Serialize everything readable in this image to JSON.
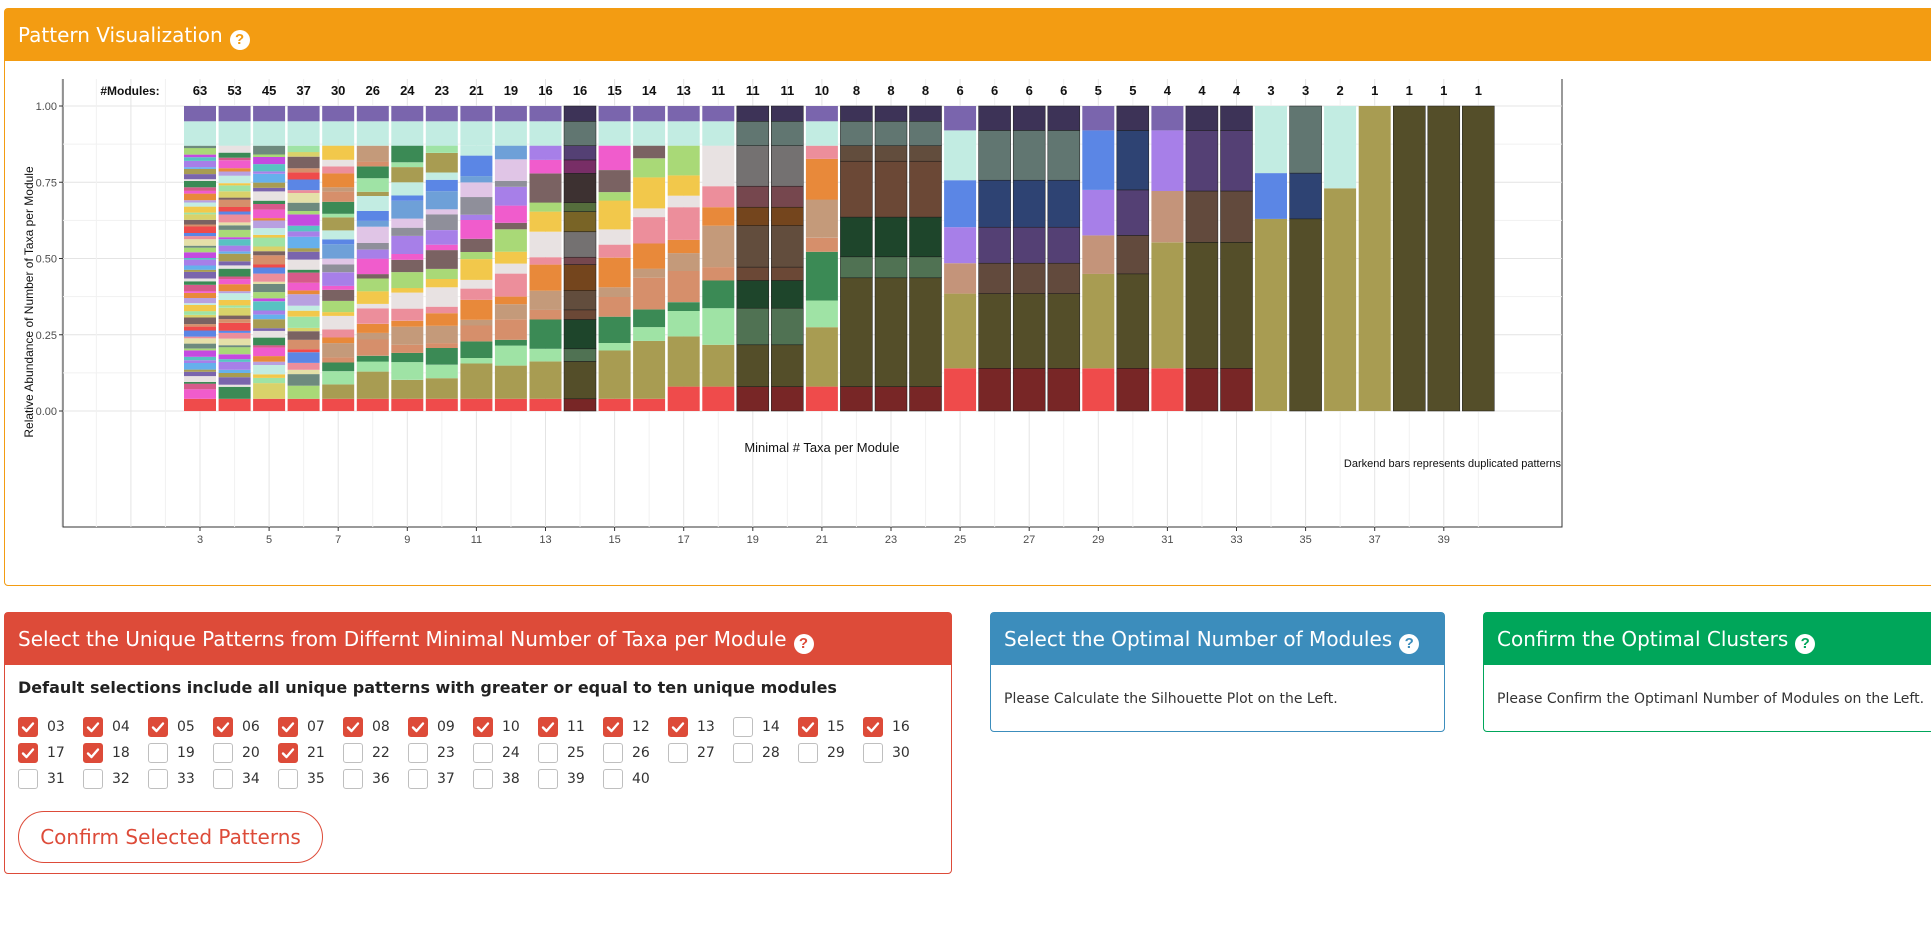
{
  "viz": {
    "title": "Pattern Visualization",
    "help_icon": "question-circle-icon",
    "footnote": "Darkend bars represents duplicated patterns"
  },
  "chart_data": {
    "type": "bar",
    "stacked": true,
    "x_name": "Minimal # Taxa per Module",
    "y_name": "Relative Abundance of Number of Taxa per Module",
    "ylim": [
      0,
      1
    ],
    "yticks": [
      "0.00",
      "0.25",
      "0.50",
      "0.75",
      "1.00"
    ],
    "xticks": [
      3,
      5,
      7,
      9,
      11,
      13,
      15,
      17,
      19,
      21,
      23,
      25,
      27,
      29,
      31,
      33,
      35,
      37,
      39
    ],
    "modules_header": "#Modules:",
    "categories": [
      3,
      4,
      5,
      6,
      7,
      8,
      9,
      10,
      11,
      12,
      13,
      14,
      15,
      16,
      17,
      18,
      19,
      20,
      21,
      22,
      23,
      24,
      25,
      26,
      27,
      28,
      29,
      30,
      31,
      32,
      33,
      34,
      35,
      36,
      37,
      38,
      39,
      40
    ],
    "modules": [
      63,
      53,
      45,
      37,
      30,
      26,
      24,
      23,
      21,
      19,
      16,
      16,
      15,
      14,
      13,
      11,
      11,
      11,
      10,
      8,
      8,
      8,
      6,
      6,
      6,
      6,
      5,
      5,
      4,
      4,
      4,
      3,
      3,
      2,
      1,
      1,
      1,
      1
    ],
    "duplicated": [
      14,
      19,
      20,
      22,
      23,
      24,
      26,
      27,
      28,
      30,
      32,
      33,
      35,
      38,
      39,
      40
    ],
    "grid": true,
    "legend": "none"
  },
  "patterns": {
    "title": "Select the Unique Patterns from Differnt Minimal Number of Taxa per Module",
    "help_icon": "question-circle-icon",
    "description": "Default selections include all unique patterns with greater or equal to ten unique modules",
    "options": [
      {
        "label": "03",
        "checked": true
      },
      {
        "label": "04",
        "checked": true
      },
      {
        "label": "05",
        "checked": true
      },
      {
        "label": "06",
        "checked": true
      },
      {
        "label": "07",
        "checked": true
      },
      {
        "label": "08",
        "checked": true
      },
      {
        "label": "09",
        "checked": true
      },
      {
        "label": "10",
        "checked": true
      },
      {
        "label": "11",
        "checked": true
      },
      {
        "label": "12",
        "checked": true
      },
      {
        "label": "13",
        "checked": true
      },
      {
        "label": "14",
        "checked": false
      },
      {
        "label": "15",
        "checked": true
      },
      {
        "label": "16",
        "checked": true
      },
      {
        "label": "17",
        "checked": true
      },
      {
        "label": "18",
        "checked": true
      },
      {
        "label": "19",
        "checked": false
      },
      {
        "label": "20",
        "checked": false
      },
      {
        "label": "21",
        "checked": true
      },
      {
        "label": "22",
        "checked": false
      },
      {
        "label": "23",
        "checked": false
      },
      {
        "label": "24",
        "checked": false
      },
      {
        "label": "25",
        "checked": false
      },
      {
        "label": "26",
        "checked": false
      },
      {
        "label": "27",
        "checked": false
      },
      {
        "label": "28",
        "checked": false
      },
      {
        "label": "29",
        "checked": false
      },
      {
        "label": "30",
        "checked": false
      },
      {
        "label": "31",
        "checked": false
      },
      {
        "label": "32",
        "checked": false
      },
      {
        "label": "33",
        "checked": false
      },
      {
        "label": "34",
        "checked": false
      },
      {
        "label": "35",
        "checked": false
      },
      {
        "label": "36",
        "checked": false
      },
      {
        "label": "37",
        "checked": false
      },
      {
        "label": "38",
        "checked": false
      },
      {
        "label": "39",
        "checked": false
      },
      {
        "label": "40",
        "checked": false
      }
    ],
    "confirm_label": "Confirm Selected Patterns"
  },
  "modules_panel": {
    "title": "Select the Optimal Number of Modules",
    "help_icon": "question-circle-icon",
    "text": "Please Calculate the Silhouette Plot on the Left."
  },
  "clusters_panel": {
    "title": "Confirm the Optimal Clusters",
    "help_icon": "question-circle-icon",
    "text": "Please Confirm the Optimanl Number of Modules on the Left."
  },
  "colors": {
    "orange": "#f39c12",
    "red": "#dd4b39",
    "blue": "#3c8dbc",
    "green": "#00a65a"
  }
}
